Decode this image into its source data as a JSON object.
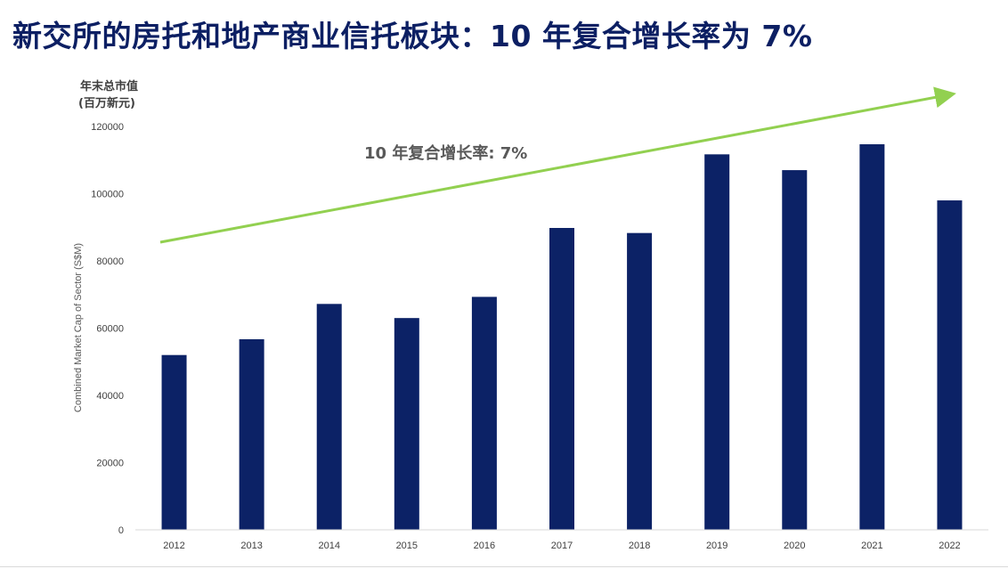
{
  "slide": {
    "title": "新交所的房托和地产商业信托板块：10 年复合增长率为 7%"
  },
  "chart_data": {
    "type": "bar",
    "categories": [
      "2012",
      "2013",
      "2014",
      "2015",
      "2016",
      "2017",
      "2018",
      "2019",
      "2020",
      "2021",
      "2022"
    ],
    "series": [
      {
        "values": [
          52000,
          56700,
          67200,
          63000,
          69300,
          89800,
          88300,
          111700,
          107000,
          114700,
          98000
        ],
        "color": "#0c2266"
      }
    ],
    "ylabel": "Combined Market Cap of Sector (S$M)",
    "unit_label_line1": "年末总市值",
    "unit_label_line2": "(百万新元)",
    "ylim": [
      0,
      120000
    ],
    "yticks": [
      0,
      20000,
      40000,
      60000,
      80000,
      100000,
      120000
    ],
    "grid": false,
    "trend_annotation": {
      "text": "10 年复合增长率: 7%",
      "color": "#92d050"
    },
    "colors": {
      "bar": "#0c2266",
      "trend": "#92d050",
      "axis_text": "#404040",
      "annotation_text": "#595959"
    }
  }
}
